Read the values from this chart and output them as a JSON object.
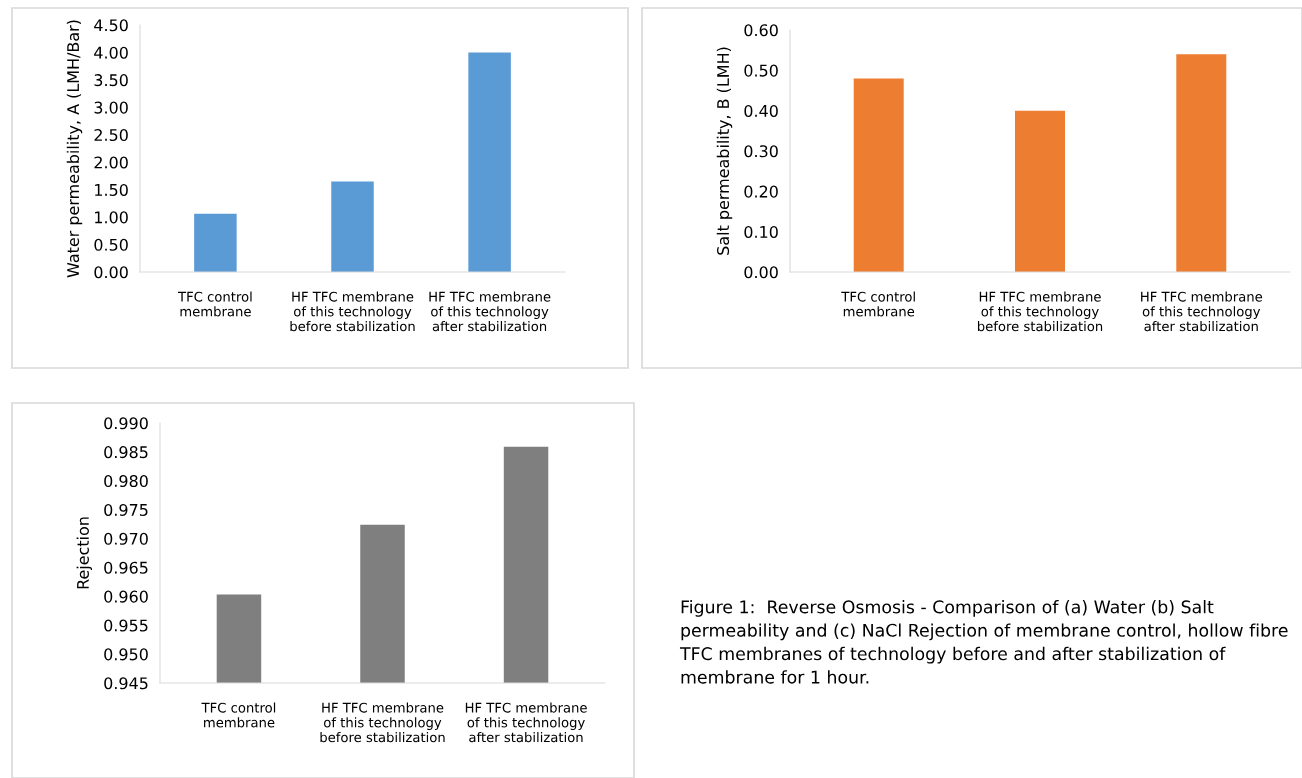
{
  "chart_data": [
    {
      "type": "bar",
      "ylabel": "Water permeability, A (LMH/Bar)",
      "categories": [
        "TFC control\nmembrane",
        "HF TFC membrane\nof this technology\nbefore stabilization",
        "HF TFC membrane\nof this technology\nafter stabilization"
      ],
      "values": [
        1.06,
        1.65,
        4.0
      ],
      "color": "#5b9bd5",
      "ylim": [
        0,
        4.5
      ],
      "yticks": [
        {
          "value": 0,
          "label": "0.00"
        },
        {
          "value": 0.5,
          "label": "0.50"
        },
        {
          "value": 1,
          "label": "1.00"
        },
        {
          "value": 1.5,
          "label": "1.50"
        },
        {
          "value": 2,
          "label": "2.00"
        },
        {
          "value": 2.5,
          "label": "2.50"
        },
        {
          "value": 3,
          "label": "3.00"
        },
        {
          "value": 3.5,
          "label": "3.50"
        },
        {
          "value": 4,
          "label": "4.00"
        },
        {
          "value": 4.5,
          "label": "4.50"
        }
      ]
    },
    {
      "type": "bar",
      "ylabel": "Salt permeability, B (LMH)",
      "categories": [
        "TFC control\nmembrane",
        "HF TFC membrane\nof this technology\nbefore stabilization",
        "HF TFC membrane\nof this technology\nafter stabilization"
      ],
      "values": [
        0.48,
        0.4,
        0.54
      ],
      "color": "#ed7d31",
      "ylim": [
        0,
        0.6
      ],
      "yticks": [
        {
          "value": 0,
          "label": "0.00"
        },
        {
          "value": 0.1,
          "label": "0.10"
        },
        {
          "value": 0.2,
          "label": "0.20"
        },
        {
          "value": 0.3,
          "label": "0.30"
        },
        {
          "value": 0.4,
          "label": "0.40"
        },
        {
          "value": 0.5,
          "label": "0.50"
        },
        {
          "value": 0.6,
          "label": "0.60"
        }
      ]
    },
    {
      "type": "bar",
      "ylabel": "Rejection",
      "categories": [
        "TFC control\nmembrane",
        "HF TFC membrane\nof this technology\nbefore stabilization",
        "HF TFC membrane\nof this technology\nafter stabilization"
      ],
      "values": [
        0.9603,
        0.9724,
        0.9859
      ],
      "color": "#7f7f7f",
      "ylim": [
        0.945,
        0.99
      ],
      "yticks": [
        {
          "value": 0.945,
          "label": "0.945"
        },
        {
          "value": 0.95,
          "label": "0.950"
        },
        {
          "value": 0.955,
          "label": "0.955"
        },
        {
          "value": 0.96,
          "label": "0.960"
        },
        {
          "value": 0.965,
          "label": "0.965"
        },
        {
          "value": 0.97,
          "label": "0.970"
        },
        {
          "value": 0.975,
          "label": "0.975"
        },
        {
          "value": 0.98,
          "label": "0.980"
        },
        {
          "value": 0.985,
          "label": "0.985"
        },
        {
          "value": 0.99,
          "label": "0.990"
        }
      ],
      "annotations": [
        "Figure 1:  Reverse Osmosis - Comparison of (a) Water (b) Salt permeability and (c) NaCl Rejection of membrane control, hollow fibre TFC membranes of technology before and after stabilization of membrane for 1 hour."
      ]
    }
  ]
}
